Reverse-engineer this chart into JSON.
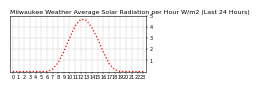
{
  "title": "Milwaukee Weather Average Solar Radiation per Hour W/m2 (Last 24 Hours)",
  "hours": [
    0,
    1,
    2,
    3,
    4,
    5,
    6,
    7,
    8,
    9,
    10,
    11,
    12,
    13,
    14,
    15,
    16,
    17,
    18,
    19,
    20,
    21,
    22,
    23
  ],
  "values": [
    0,
    0,
    0,
    0,
    0,
    0,
    0,
    20,
    80,
    180,
    300,
    410,
    470,
    460,
    390,
    290,
    170,
    70,
    15,
    0,
    0,
    0,
    0,
    0
  ],
  "line_color": "#ff0000",
  "bg_color": "#ffffff",
  "grid_color": "#bbbbbb",
  "ylim": [
    0,
    500
  ],
  "yticks": [
    100,
    200,
    300,
    400,
    500
  ],
  "ytick_labels": [
    "1",
    "2",
    "3",
    "4",
    "5"
  ],
  "xticks": [
    0,
    1,
    2,
    3,
    4,
    5,
    6,
    7,
    8,
    9,
    10,
    11,
    12,
    13,
    14,
    15,
    16,
    17,
    18,
    19,
    20,
    21,
    22,
    23
  ],
  "title_fontsize": 4.5,
  "tick_fontsize": 3.5,
  "line_width": 0.9
}
